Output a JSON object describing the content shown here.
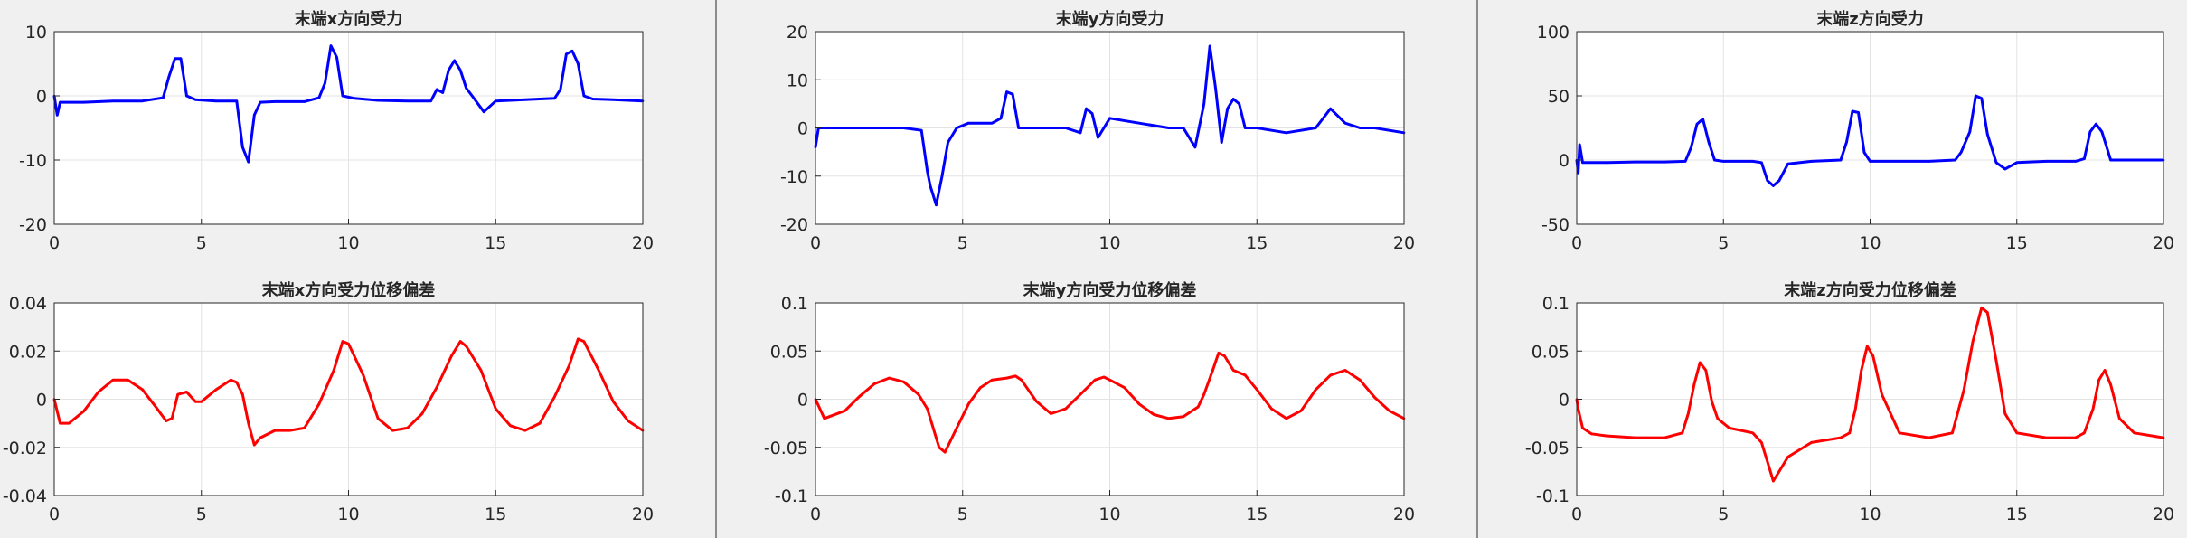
{
  "chart_data": [
    {
      "type": "line",
      "title": "末端x方向受力",
      "xlim": [
        0,
        20
      ],
      "ylim": [
        -20,
        10
      ],
      "xticks": [
        0,
        5,
        10,
        15,
        20
      ],
      "yticks": [
        -20,
        -10,
        0,
        10
      ],
      "grid": true,
      "color": "#0000ff",
      "series": [
        {
          "x": [
            0,
            0.1,
            0.2,
            1,
            2,
            3,
            3.7,
            3.9,
            4.1,
            4.3,
            4.5,
            4.8,
            5.5,
            6,
            6.2,
            6.4,
            6.6,
            6.8,
            7,
            7.5,
            8.5,
            9,
            9.2,
            9.4,
            9.6,
            9.8,
            10.2,
            11,
            12,
            12.8,
            13,
            13.2,
            13.4,
            13.6,
            13.8,
            14,
            14.2,
            14.6,
            15,
            16,
            17,
            17.2,
            17.4,
            17.6,
            17.8,
            18,
            18.3,
            19,
            20
          ],
          "y": [
            0,
            -3,
            -1,
            -1,
            -0.8,
            -0.8,
            -0.3,
            3,
            5.8,
            5.8,
            0,
            -0.6,
            -0.8,
            -0.8,
            -0.8,
            -8,
            -10.3,
            -3,
            -1,
            -0.9,
            -0.9,
            -0.3,
            2,
            7.8,
            6,
            0,
            -0.4,
            -0.7,
            -0.8,
            -0.8,
            1,
            0.5,
            4,
            5.5,
            4,
            1.2,
            0,
            -2.5,
            -0.8,
            -0.6,
            -0.4,
            1,
            6.5,
            7,
            5,
            0,
            -0.5,
            -0.6,
            -0.8
          ]
        }
      ]
    },
    {
      "type": "line",
      "title": "末端y方向受力",
      "xlim": [
        0,
        20
      ],
      "ylim": [
        -20,
        20
      ],
      "xticks": [
        0,
        5,
        10,
        15,
        20
      ],
      "yticks": [
        -20,
        -10,
        0,
        10,
        20
      ],
      "grid": true,
      "color": "#0000ff",
      "series": [
        {
          "x": [
            0,
            0.1,
            1,
            2,
            3,
            3.6,
            3.8,
            3.9,
            4.1,
            4.3,
            4.5,
            4.8,
            5.2,
            6,
            6.3,
            6.5,
            6.7,
            6.9,
            7.5,
            8.5,
            9,
            9.2,
            9.4,
            9.6,
            10,
            11,
            12,
            12.5,
            12.9,
            13.2,
            13.4,
            13.6,
            13.8,
            14,
            14.2,
            14.4,
            14.6,
            15,
            16,
            17,
            17.5,
            18,
            18.5,
            19,
            20
          ],
          "y": [
            -4,
            0,
            0,
            0,
            0,
            -0.5,
            -9,
            -12,
            -16,
            -10,
            -3,
            0,
            1,
            1,
            2,
            7.5,
            7,
            0,
            0,
            0,
            -1,
            4,
            3,
            -2,
            2,
            1,
            0,
            0,
            -4,
            5,
            17,
            8,
            -3,
            4,
            6,
            5,
            0,
            0,
            -1,
            0,
            4,
            1,
            0,
            0,
            -1
          ]
        }
      ]
    },
    {
      "type": "line",
      "title": "末端z方向受力",
      "xlim": [
        0,
        20
      ],
      "ylim": [
        -50,
        100
      ],
      "xticks": [
        0,
        5,
        10,
        15,
        20
      ],
      "yticks": [
        -50,
        0,
        50,
        100
      ],
      "grid": true,
      "color": "#0000ff",
      "series": [
        {
          "x": [
            0,
            0.05,
            0.1,
            0.2,
            1,
            2,
            3,
            3.7,
            3.9,
            4.1,
            4.3,
            4.5,
            4.7,
            5,
            6,
            6.3,
            6.5,
            6.7,
            6.9,
            7.2,
            8,
            9,
            9.2,
            9.4,
            9.6,
            9.8,
            10,
            11,
            12,
            12.9,
            13.1,
            13.4,
            13.6,
            13.8,
            14,
            14.3,
            14.6,
            15,
            16,
            17,
            17.3,
            17.5,
            17.7,
            17.9,
            18.2,
            19,
            20
          ],
          "y": [
            0,
            -10,
            12,
            -2,
            -2,
            -1.5,
            -1.5,
            -1,
            10,
            28,
            32,
            14,
            0,
            -1,
            -1,
            -2,
            -16,
            -20,
            -16,
            -3,
            -1,
            0,
            14,
            38,
            37,
            6,
            -1,
            -1,
            -1,
            0,
            6,
            22,
            50,
            48,
            20,
            -2,
            -7,
            -2,
            -1,
            -1,
            1,
            22,
            28,
            22,
            0,
            0,
            0
          ]
        }
      ]
    },
    {
      "type": "line",
      "title": "末端x方向受力位移偏差",
      "xlim": [
        0,
        20
      ],
      "ylim": [
        -0.04,
        0.04
      ],
      "xticks": [
        0,
        5,
        10,
        15,
        20
      ],
      "yticks": [
        -0.04,
        -0.02,
        0,
        0.02,
        0.04
      ],
      "grid": true,
      "color": "#ff0000",
      "series": [
        {
          "x": [
            0,
            0.2,
            0.5,
            1,
            1.5,
            2,
            2.5,
            3,
            3.5,
            3.8,
            4,
            4.2,
            4.5,
            4.8,
            5,
            5.5,
            6,
            6.2,
            6.4,
            6.6,
            6.8,
            7,
            7.5,
            8,
            8.5,
            9,
            9.5,
            9.8,
            10,
            10.5,
            11,
            11.5,
            12,
            12.5,
            13,
            13.5,
            13.8,
            14,
            14.5,
            15,
            15.5,
            16,
            16.5,
            17,
            17.5,
            17.8,
            18,
            18.5,
            19,
            19.5,
            20
          ],
          "y": [
            0,
            -0.01,
            -0.01,
            -0.005,
            0.003,
            0.008,
            0.008,
            0.004,
            -0.004,
            -0.009,
            -0.008,
            0.002,
            0.003,
            -0.001,
            -0.001,
            0.004,
            0.008,
            0.007,
            0.002,
            -0.01,
            -0.019,
            -0.016,
            -0.013,
            -0.013,
            -0.012,
            -0.002,
            0.012,
            0.024,
            0.023,
            0.01,
            -0.008,
            -0.013,
            -0.012,
            -0.006,
            0.005,
            0.018,
            0.024,
            0.022,
            0.012,
            -0.004,
            -0.011,
            -0.013,
            -0.01,
            0.001,
            0.014,
            0.025,
            0.024,
            0.012,
            -0.001,
            -0.009,
            -0.013
          ]
        }
      ]
    },
    {
      "type": "line",
      "title": "末端y方向受力位移偏差",
      "xlim": [
        0,
        20
      ],
      "ylim": [
        -0.1,
        0.1
      ],
      "xticks": [
        0,
        5,
        10,
        15,
        20
      ],
      "yticks": [
        -0.1,
        -0.05,
        0,
        0.05,
        0.1
      ],
      "grid": true,
      "color": "#ff0000",
      "series": [
        {
          "x": [
            0,
            0.3,
            1,
            1.5,
            2,
            2.5,
            3,
            3.5,
            3.8,
            4,
            4.2,
            4.4,
            4.8,
            5.2,
            5.6,
            6,
            6.5,
            6.8,
            7,
            7.5,
            8,
            8.5,
            9,
            9.5,
            9.8,
            10,
            10.5,
            11,
            11.5,
            12,
            12.5,
            13,
            13.2,
            13.5,
            13.7,
            13.9,
            14.2,
            14.6,
            15,
            15.5,
            16,
            16.5,
            17,
            17.5,
            18,
            18.5,
            19,
            19.5,
            20
          ],
          "y": [
            0,
            -0.02,
            -0.012,
            0.003,
            0.016,
            0.022,
            0.018,
            0.005,
            -0.01,
            -0.03,
            -0.05,
            -0.055,
            -0.03,
            -0.005,
            0.012,
            0.02,
            0.022,
            0.024,
            0.02,
            -0.002,
            -0.015,
            -0.01,
            0.005,
            0.02,
            0.023,
            0.02,
            0.012,
            -0.005,
            -0.016,
            -0.02,
            -0.018,
            -0.008,
            0.005,
            0.03,
            0.048,
            0.045,
            0.03,
            0.025,
            0.01,
            -0.01,
            -0.02,
            -0.012,
            0.01,
            0.025,
            0.03,
            0.02,
            0.002,
            -0.012,
            -0.02
          ]
        }
      ]
    },
    {
      "type": "line",
      "title": "末端z方向受力位移偏差",
      "xlim": [
        0,
        20
      ],
      "ylim": [
        -0.1,
        0.1
      ],
      "xticks": [
        0,
        5,
        10,
        15,
        20
      ],
      "yticks": [
        -0.1,
        -0.05,
        0,
        0.05,
        0.1
      ],
      "grid": true,
      "color": "#ff0000",
      "series": [
        {
          "x": [
            0,
            0.05,
            0.2,
            0.5,
            1,
            2,
            3,
            3.6,
            3.8,
            4,
            4.2,
            4.4,
            4.6,
            4.8,
            5.2,
            6,
            6.3,
            6.5,
            6.7,
            6.9,
            7.2,
            8,
            9,
            9.3,
            9.5,
            9.7,
            9.9,
            10.1,
            10.4,
            11,
            12,
            12.8,
            13.2,
            13.5,
            13.8,
            14,
            14.3,
            14.6,
            15,
            16,
            17,
            17.3,
            17.6,
            17.8,
            18,
            18.2,
            18.5,
            19,
            20
          ],
          "y": [
            0,
            -0.01,
            -0.03,
            -0.036,
            -0.038,
            -0.04,
            -0.04,
            -0.035,
            -0.015,
            0.015,
            0.038,
            0.03,
            -0.002,
            -0.02,
            -0.03,
            -0.035,
            -0.045,
            -0.065,
            -0.085,
            -0.075,
            -0.06,
            -0.045,
            -0.04,
            -0.035,
            -0.01,
            0.03,
            0.055,
            0.045,
            0.005,
            -0.035,
            -0.04,
            -0.035,
            0.01,
            0.06,
            0.095,
            0.09,
            0.04,
            -0.015,
            -0.035,
            -0.04,
            -0.04,
            -0.035,
            -0.01,
            0.02,
            0.03,
            0.015,
            -0.02,
            -0.035,
            -0.04
          ]
        }
      ]
    }
  ]
}
